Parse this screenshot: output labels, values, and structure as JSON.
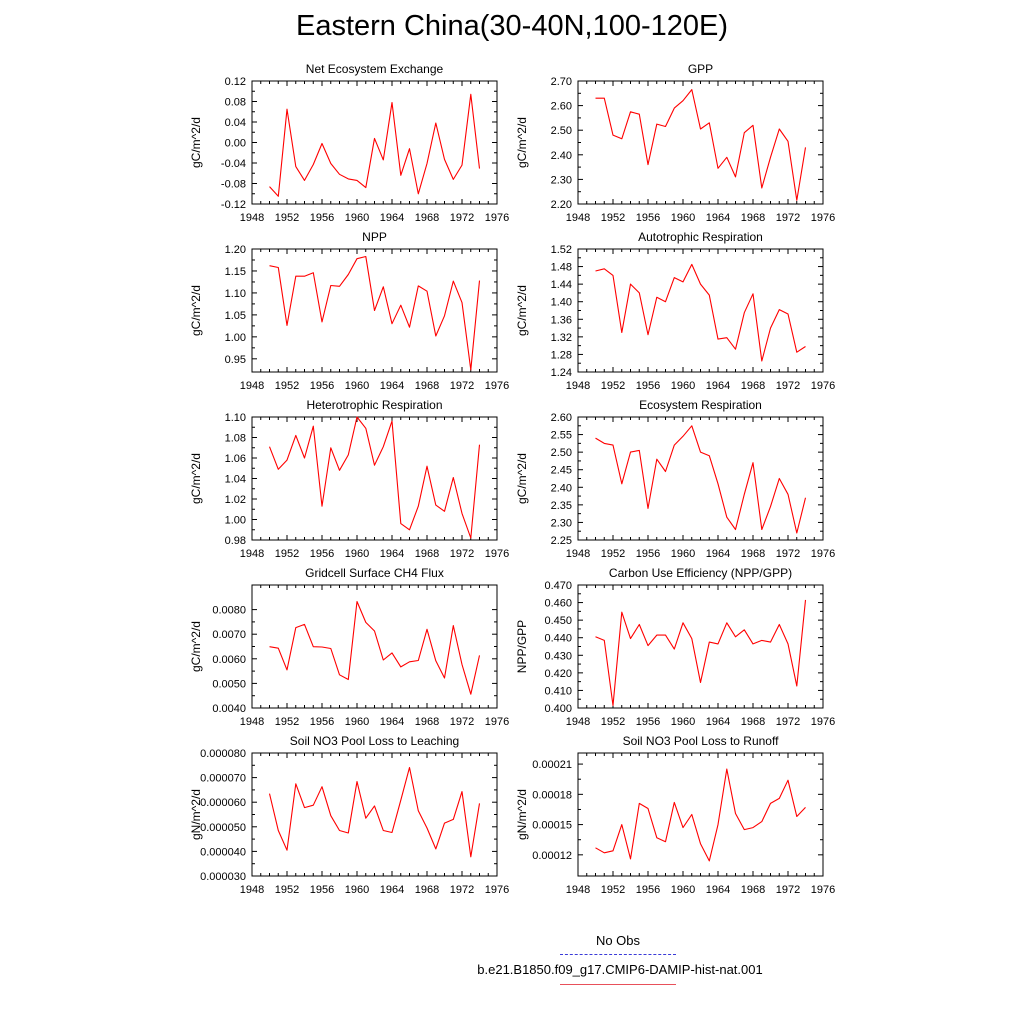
{
  "title": "Eastern China(30-40N,100-120E)",
  "legend": {
    "no_obs": "No Obs",
    "run": "b.e21.B1850.f09_g17.CMIP6-DAMIP-hist-nat.001",
    "run_color": "#ff0000",
    "obs_color": "#3a3ad8"
  },
  "chart_data": [
    {
      "type": "line",
      "title": "Net Ecosystem Exchange",
      "ylabel": "gC/m^2/d",
      "xlim": [
        1948,
        1976
      ],
      "xticks": [
        1948,
        1952,
        1956,
        1960,
        1964,
        1968,
        1972,
        1976
      ],
      "ylim": [
        -0.12,
        0.12
      ],
      "yticks": [
        "-0.12",
        "-0.08",
        "-0.04",
        "0.00",
        "0.04",
        "0.08",
        "0.12"
      ],
      "series": [
        {
          "color": "#ff0000",
          "x": [
            1950,
            1951,
            1952,
            1953,
            1954,
            1955,
            1956,
            1957,
            1958,
            1959,
            1960,
            1961,
            1962,
            1963,
            1964,
            1965,
            1966,
            1967,
            1968,
            1969,
            1970,
            1971,
            1972,
            1973,
            1974
          ],
          "values": [
            -0.086,
            -0.105,
            0.065,
            -0.047,
            -0.074,
            -0.043,
            -0.002,
            -0.041,
            -0.062,
            -0.071,
            -0.074,
            -0.088,
            0.008,
            -0.034,
            0.078,
            -0.064,
            -0.012,
            -0.1,
            -0.041,
            0.038,
            -0.033,
            -0.072,
            -0.044,
            0.094,
            -0.051
          ]
        }
      ]
    },
    {
      "type": "line",
      "title": "GPP",
      "ylabel": "gC/m^2/d",
      "xlim": [
        1948,
        1976
      ],
      "xticks": [
        1948,
        1952,
        1956,
        1960,
        1964,
        1968,
        1972,
        1976
      ],
      "ylim": [
        2.2,
        2.7
      ],
      "yticks": [
        "2.20",
        "2.30",
        "2.40",
        "2.50",
        "2.60",
        "2.70"
      ],
      "series": [
        {
          "color": "#ff0000",
          "x": [
            1950,
            1951,
            1952,
            1953,
            1954,
            1955,
            1956,
            1957,
            1958,
            1959,
            1960,
            1961,
            1962,
            1963,
            1964,
            1965,
            1966,
            1967,
            1968,
            1969,
            1970,
            1971,
            1972,
            1973,
            1974
          ],
          "values": [
            2.63,
            2.63,
            2.48,
            2.465,
            2.575,
            2.565,
            2.36,
            2.525,
            2.515,
            2.59,
            2.62,
            2.665,
            2.505,
            2.53,
            2.345,
            2.39,
            2.31,
            2.49,
            2.52,
            2.265,
            2.39,
            2.505,
            2.455,
            2.215,
            2.43
          ]
        }
      ]
    },
    {
      "type": "line",
      "title": "NPP",
      "ylabel": "gC/m^2/d",
      "xlim": [
        1948,
        1976
      ],
      "xticks": [
        1948,
        1952,
        1956,
        1960,
        1964,
        1968,
        1972,
        1976
      ],
      "ylim": [
        0.92,
        1.2
      ],
      "yticks": [
        "0.95",
        "1.00",
        "1.05",
        "1.10",
        "1.15",
        "1.20"
      ],
      "series": [
        {
          "color": "#ff0000",
          "x": [
            1950,
            1951,
            1952,
            1953,
            1954,
            1955,
            1956,
            1957,
            1958,
            1959,
            1960,
            1961,
            1962,
            1963,
            1964,
            1965,
            1966,
            1967,
            1968,
            1969,
            1970,
            1971,
            1972,
            1973,
            1974
          ],
          "values": [
            1.162,
            1.158,
            1.026,
            1.138,
            1.138,
            1.146,
            1.034,
            1.117,
            1.115,
            1.142,
            1.178,
            1.183,
            1.06,
            1.114,
            1.03,
            1.072,
            1.022,
            1.116,
            1.104,
            1.002,
            1.048,
            1.127,
            1.078,
            0.925,
            1.128
          ]
        }
      ]
    },
    {
      "type": "line",
      "title": "Autotrophic Respiration",
      "ylabel": "gC/m^2/d",
      "xlim": [
        1948,
        1976
      ],
      "xticks": [
        1948,
        1952,
        1956,
        1960,
        1964,
        1968,
        1972,
        1976
      ],
      "ylim": [
        1.24,
        1.52
      ],
      "yticks": [
        "1.24",
        "1.28",
        "1.32",
        "1.36",
        "1.40",
        "1.44",
        "1.48",
        "1.52"
      ],
      "series": [
        {
          "color": "#ff0000",
          "x": [
            1950,
            1951,
            1952,
            1953,
            1954,
            1955,
            1956,
            1957,
            1958,
            1959,
            1960,
            1961,
            1962,
            1963,
            1964,
            1965,
            1966,
            1967,
            1968,
            1969,
            1970,
            1971,
            1972,
            1973,
            1974
          ],
          "values": [
            1.47,
            1.475,
            1.46,
            1.33,
            1.44,
            1.42,
            1.325,
            1.41,
            1.4,
            1.455,
            1.445,
            1.485,
            1.44,
            1.415,
            1.315,
            1.318,
            1.292,
            1.375,
            1.418,
            1.265,
            1.34,
            1.382,
            1.372,
            1.285,
            1.298
          ]
        }
      ]
    },
    {
      "type": "line",
      "title": "Heterotrophic Respiration",
      "ylabel": "gC/m^2/d",
      "xlim": [
        1948,
        1976
      ],
      "xticks": [
        1948,
        1952,
        1956,
        1960,
        1964,
        1968,
        1972,
        1976
      ],
      "ylim": [
        0.98,
        1.1
      ],
      "yticks": [
        "0.98",
        "1.00",
        "1.02",
        "1.04",
        "1.06",
        "1.08",
        "1.10"
      ],
      "series": [
        {
          "color": "#ff0000",
          "x": [
            1950,
            1951,
            1952,
            1953,
            1954,
            1955,
            1956,
            1957,
            1958,
            1959,
            1960,
            1961,
            1962,
            1963,
            1964,
            1965,
            1966,
            1967,
            1968,
            1969,
            1970,
            1971,
            1972,
            1973,
            1974
          ],
          "values": [
            1.071,
            1.049,
            1.058,
            1.082,
            1.06,
            1.091,
            1.013,
            1.07,
            1.048,
            1.063,
            1.1,
            1.089,
            1.053,
            1.071,
            1.096,
            0.996,
            0.99,
            1.013,
            1.052,
            1.014,
            1.008,
            1.041,
            1.006,
            0.982,
            1.073
          ]
        }
      ]
    },
    {
      "type": "line",
      "title": "Ecosystem Respiration",
      "ylabel": "gC/m^2/d",
      "xlim": [
        1948,
        1976
      ],
      "xticks": [
        1948,
        1952,
        1956,
        1960,
        1964,
        1968,
        1972,
        1976
      ],
      "ylim": [
        2.25,
        2.6
      ],
      "yticks": [
        "2.25",
        "2.30",
        "2.35",
        "2.40",
        "2.45",
        "2.50",
        "2.55",
        "2.60"
      ],
      "series": [
        {
          "color": "#ff0000",
          "x": [
            1950,
            1951,
            1952,
            1953,
            1954,
            1955,
            1956,
            1957,
            1958,
            1959,
            1960,
            1961,
            1962,
            1963,
            1964,
            1965,
            1966,
            1967,
            1968,
            1969,
            1970,
            1971,
            1972,
            1973,
            1974
          ],
          "values": [
            2.54,
            2.525,
            2.52,
            2.41,
            2.5,
            2.505,
            2.34,
            2.48,
            2.445,
            2.52,
            2.545,
            2.575,
            2.5,
            2.49,
            2.41,
            2.315,
            2.28,
            2.38,
            2.47,
            2.28,
            2.345,
            2.425,
            2.38,
            2.27,
            2.37
          ]
        }
      ]
    },
    {
      "type": "line",
      "title": "Gridcell Surface CH4 Flux",
      "ylabel": "gC/m^2/d",
      "xlim": [
        1948,
        1976
      ],
      "xticks": [
        1948,
        1952,
        1956,
        1960,
        1964,
        1968,
        1972,
        1976
      ],
      "ylim": [
        0.004,
        0.009
      ],
      "yticks": [
        "0.0040",
        "0.0050",
        "0.0060",
        "0.0070",
        "0.0080"
      ],
      "series": [
        {
          "color": "#ff0000",
          "x": [
            1950,
            1951,
            1952,
            1953,
            1954,
            1955,
            1956,
            1957,
            1958,
            1959,
            1960,
            1961,
            1962,
            1963,
            1964,
            1965,
            1966,
            1967,
            1968,
            1969,
            1970,
            1971,
            1972,
            1973,
            1974
          ],
          "values": [
            0.00649,
            0.00643,
            0.00555,
            0.00727,
            0.0074,
            0.00649,
            0.00648,
            0.00642,
            0.00535,
            0.00516,
            0.00833,
            0.00748,
            0.00713,
            0.00595,
            0.00624,
            0.00567,
            0.00588,
            0.00593,
            0.0072,
            0.00592,
            0.00522,
            0.00735,
            0.00577,
            0.00456,
            0.00614
          ]
        }
      ]
    },
    {
      "type": "line",
      "title": "Carbon Use Efficiency (NPP/GPP)",
      "ylabel": "NPP/GPP",
      "xlim": [
        1948,
        1976
      ],
      "xticks": [
        1948,
        1952,
        1956,
        1960,
        1964,
        1968,
        1972,
        1976
      ],
      "ylim": [
        0.4,
        0.47
      ],
      "yticks": [
        "0.400",
        "0.410",
        "0.420",
        "0.430",
        "0.440",
        "0.450",
        "0.460",
        "0.470"
      ],
      "series": [
        {
          "color": "#ff0000",
          "x": [
            1950,
            1951,
            1952,
            1953,
            1954,
            1955,
            1956,
            1957,
            1958,
            1959,
            1960,
            1961,
            1962,
            1963,
            1964,
            1965,
            1966,
            1967,
            1968,
            1969,
            1970,
            1971,
            1972,
            1973,
            1974
          ],
          "values": [
            0.4405,
            0.4385,
            0.4015,
            0.4545,
            0.4395,
            0.4475,
            0.4355,
            0.4415,
            0.4415,
            0.4335,
            0.4485,
            0.4395,
            0.4145,
            0.4375,
            0.4365,
            0.4485,
            0.4405,
            0.4445,
            0.4365,
            0.4385,
            0.4375,
            0.4475,
            0.4365,
            0.4125,
            0.4615
          ]
        }
      ]
    },
    {
      "type": "line",
      "title": "Soil NO3 Pool Loss to Leaching",
      "ylabel": "gN/m^2/d",
      "xlim": [
        1948,
        1976
      ],
      "xticks": [
        1948,
        1952,
        1956,
        1960,
        1964,
        1968,
        1972,
        1976
      ],
      "ylim": [
        3e-05,
        8e-05
      ],
      "yticks": [
        "0.000030",
        "0.000040",
        "0.000050",
        "0.000060",
        "0.000070",
        "0.000080"
      ],
      "series": [
        {
          "color": "#ff0000",
          "x": [
            1950,
            1951,
            1952,
            1953,
            1954,
            1955,
            1956,
            1957,
            1958,
            1959,
            1960,
            1961,
            1962,
            1963,
            1964,
            1965,
            1966,
            1967,
            1968,
            1969,
            1970,
            1971,
            1972,
            1973,
            1974
          ],
          "values": [
            6.35e-05,
            4.85e-05,
            4.05e-05,
            6.75e-05,
            5.78e-05,
            5.88e-05,
            6.63e-05,
            5.45e-05,
            4.85e-05,
            4.75e-05,
            6.84e-05,
            5.35e-05,
            5.85e-05,
            4.85e-05,
            4.77e-05,
            6.08e-05,
            7.41e-05,
            5.65e-05,
            4.95e-05,
            4.1e-05,
            5.15e-05,
            5.3e-05,
            6.43e-05,
            3.78e-05,
            5.95e-05
          ]
        }
      ]
    },
    {
      "type": "line",
      "title": "Soil NO3 Pool Loss to Runoff",
      "ylabel": "gN/m^2/d",
      "xlim": [
        1948,
        1976
      ],
      "xticks": [
        1948,
        1952,
        1956,
        1960,
        1964,
        1968,
        1972,
        1976
      ],
      "ylim": [
        9.9e-05,
        0.000221
      ],
      "yticks": [
        "0.00012",
        "0.00015",
        "0.00018",
        "0.00021"
      ],
      "series": [
        {
          "color": "#ff0000",
          "x": [
            1950,
            1951,
            1952,
            1953,
            1954,
            1955,
            1956,
            1957,
            1958,
            1959,
            1960,
            1961,
            1962,
            1963,
            1964,
            1965,
            1966,
            1967,
            1968,
            1969,
            1970,
            1971,
            1972,
            1973,
            1974
          ],
          "values": [
            0.000127,
            0.000122,
            0.000124,
            0.00015,
            0.000116,
            0.000171,
            0.000166,
            0.000137,
            0.000133,
            0.000172,
            0.000147,
            0.00016,
            0.000131,
            0.000114,
            0.00015,
            0.000205,
            0.000161,
            0.000145,
            0.000147,
            0.000153,
            0.000171,
            0.000176,
            0.000194,
            0.000158,
            0.000167
          ]
        }
      ]
    }
  ]
}
